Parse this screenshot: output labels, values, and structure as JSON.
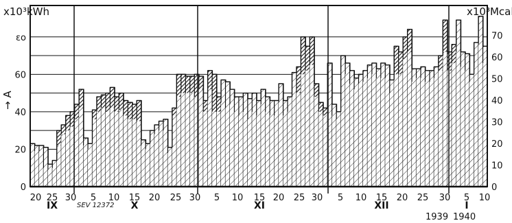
{
  "chart_data": {
    "type": "area",
    "title": "",
    "left_axis": {
      "unit_label": "x10³kWh",
      "symbol": "→ A",
      "range": [
        0,
        90
      ],
      "ticks": [
        "0",
        "20",
        "40",
        "60",
        "εο"
      ]
    },
    "right_axis": {
      "unit_label": "x10³Mcal",
      "range": [
        0,
        78
      ],
      "ticks": [
        "0",
        "10",
        "20",
        "30",
        "40",
        "50",
        "60",
        "70"
      ]
    },
    "x_axis": {
      "day_labels": [
        "20",
        "25",
        "30",
        "5",
        "10",
        "15",
        "20",
        "25",
        "30",
        "5",
        "10",
        "15",
        "20",
        "25",
        "30",
        "5",
        "10",
        "15",
        "20",
        "25",
        "30",
        "5",
        "10"
      ],
      "month_labels": [
        "IX",
        "X",
        "XI",
        "XII",
        "I"
      ],
      "year_labels": [
        "1939",
        "1940"
      ],
      "note": "SEV 12372"
    },
    "grid": true,
    "series": [
      {
        "values": [
          23,
          22,
          22,
          21,
          12,
          14,
          30,
          33,
          38,
          40,
          44,
          52,
          26,
          23,
          41,
          48,
          49,
          50,
          53,
          48,
          50,
          46,
          45,
          44,
          46,
          25,
          23,
          30,
          33,
          35,
          36,
          21,
          42,
          60,
          60,
          59,
          59,
          60,
          59,
          46,
          62,
          60,
          48,
          57,
          56,
          52,
          48,
          48,
          50,
          47,
          50,
          46,
          52,
          48,
          46,
          46,
          55,
          46,
          48,
          61,
          64,
          80,
          75,
          80,
          55,
          45,
          42,
          66,
          44,
          40,
          70,
          66,
          62,
          58,
          60,
          62,
          65,
          66,
          63,
          66,
          65,
          57,
          75,
          72,
          80,
          84,
          63,
          63,
          64,
          62,
          62,
          64,
          70,
          89,
          72,
          76,
          89,
          72,
          71,
          60,
          77,
          91,
          75
        ],
        "mid_values": [
          20,
          19,
          19,
          10,
          9,
          10,
          22,
          28,
          30,
          32,
          36,
          42,
          22,
          20,
          36,
          40,
          42,
          40,
          42,
          40,
          41,
          38,
          36,
          36,
          35,
          22,
          20,
          26,
          28,
          30,
          30,
          18,
          38,
          48,
          50,
          50,
          50,
          48,
          52,
          40,
          52,
          40,
          40,
          45,
          42,
          44,
          40,
          38,
          40,
          36,
          40,
          38,
          44,
          40,
          38,
          38,
          45,
          38,
          40,
          48,
          50,
          60,
          62,
          65,
          48,
          40,
          38,
          50,
          38,
          36,
          45,
          60,
          55,
          52,
          55,
          56,
          58,
          60,
          58,
          58,
          58,
          50,
          60,
          60,
          68,
          72,
          56,
          58,
          58,
          56,
          56,
          58,
          62,
          72,
          62,
          66,
          72,
          64,
          62,
          56,
          64,
          76,
          66
        ]
      }
    ]
  }
}
